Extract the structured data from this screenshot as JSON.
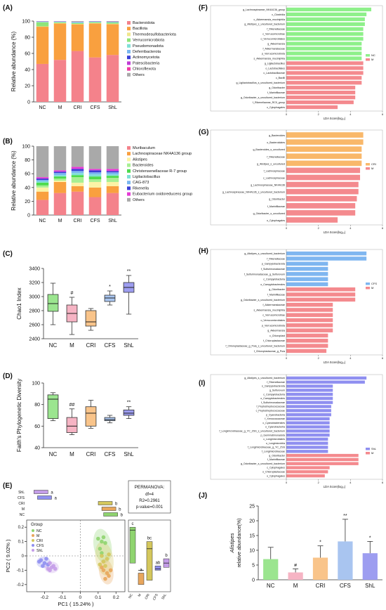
{
  "figure": {
    "panels": [
      "(A)",
      "(B)",
      "(C)",
      "(D)",
      "(E)",
      "(F)",
      "(G)",
      "(H)",
      "(I)",
      "(J)"
    ],
    "groups": [
      "NC",
      "M",
      "CRI",
      "CFS",
      "ShL"
    ]
  },
  "chart_data": [
    {
      "id": "A",
      "type": "bar",
      "stacked": true,
      "categories": [
        "NC",
        "M",
        "CRI",
        "CFS",
        "ShL"
      ],
      "ylabel": "Relative abundance (%)",
      "ylim": [
        0,
        100
      ],
      "yticks": [
        "0",
        "20",
        "40",
        "60",
        "80",
        "100"
      ],
      "legend_placement": "right",
      "series": [
        {
          "name": "Bacteroidota",
          "color": "#f4828b",
          "values": [
            47,
            52,
            63,
            55,
            58
          ]
        },
        {
          "name": "Bacillota",
          "color": "#f9a03f",
          "values": [
            46,
            45,
            33,
            42,
            38
          ]
        },
        {
          "name": "Thermodesulfobacteriota",
          "color": "#f0e68c",
          "values": [
            0.5,
            0.5,
            0.5,
            0.5,
            0.5
          ]
        },
        {
          "name": "Verrucomicrobiota",
          "color": "#8fe57a",
          "values": [
            5,
            1,
            1,
            1,
            1.5
          ]
        },
        {
          "name": "Pseudomonadota",
          "color": "#7fe0d6",
          "values": [
            0.5,
            0.5,
            1,
            0.5,
            0.5
          ]
        },
        {
          "name": "Deferribacterota",
          "color": "#79b7f0",
          "values": [
            0.3,
            0.3,
            0.3,
            0.3,
            0.3
          ]
        },
        {
          "name": "Actinomycetota",
          "color": "#3b3fd6",
          "values": [
            0.2,
            0.2,
            0.2,
            0.2,
            0.2
          ]
        },
        {
          "name": "Patescibacteria",
          "color": "#c13bd6",
          "values": [
            0.2,
            0.2,
            0.2,
            0.2,
            0.2
          ]
        },
        {
          "name": "Chloroflexota",
          "color": "#f03ba6",
          "values": [
            0.1,
            0.1,
            0.1,
            0.1,
            0.1
          ]
        },
        {
          "name": "Others",
          "color": "#a9a9a9",
          "values": [
            0.2,
            0.2,
            0.7,
            0.1,
            0.5
          ]
        }
      ]
    },
    {
      "id": "B",
      "type": "bar",
      "stacked": true,
      "categories": [
        "NC",
        "M",
        "CRI",
        "CFS",
        "ShL"
      ],
      "ylabel": "Relative abundance (%)",
      "ylim": [
        0,
        100
      ],
      "yticks": [
        "0",
        "20",
        "40",
        "60",
        "80",
        "100"
      ],
      "legend_placement": "right",
      "series": [
        {
          "name": "Muribaculum",
          "color": "#f4828b",
          "values": [
            22,
            32,
            34,
            26,
            32
          ]
        },
        {
          "name": "Lachnospiraceae NK4A136 group",
          "color": "#f9a03f",
          "values": [
            12,
            16,
            8,
            14,
            10
          ]
        },
        {
          "name": "Alistipes",
          "color": "#fbf3a6",
          "values": [
            6,
            2,
            5,
            8,
            6
          ]
        },
        {
          "name": "Bacteroides",
          "color": "#a8ef92",
          "values": [
            3,
            3,
            8,
            4,
            6
          ]
        },
        {
          "name": "Christensenellaceae R-7 group",
          "color": "#4ddb4d",
          "values": [
            4,
            3,
            3,
            4,
            3
          ]
        },
        {
          "name": "Ligilactobacillus",
          "color": "#7fe0d6",
          "values": [
            2,
            2,
            3,
            3,
            2
          ]
        },
        {
          "name": "CAG-873",
          "color": "#79b7f0",
          "values": [
            2,
            3,
            3,
            3,
            3
          ]
        },
        {
          "name": "Rikenella",
          "color": "#3b3fd6",
          "values": [
            2,
            2,
            3,
            3,
            2
          ]
        },
        {
          "name": "Eubacterium oxidoreducens group",
          "color": "#e63bd6",
          "values": [
            2,
            2,
            3,
            2,
            3
          ]
        },
        {
          "name": "Others",
          "color": "#a9a9a9",
          "values": [
            45,
            35,
            30,
            33,
            33
          ]
        }
      ]
    },
    {
      "id": "C",
      "type": "box",
      "categories": [
        "NC",
        "M",
        "CRI",
        "CFS",
        "ShL"
      ],
      "ylabel": "Chao1 Index",
      "ylim": [
        2400,
        3400
      ],
      "yticks": [
        "2400",
        "2600",
        "2800",
        "3000",
        "3200",
        "3400"
      ],
      "boxes": [
        {
          "group": "NC",
          "color": "#9be58f",
          "min": 2600,
          "q1": 2790,
          "median": 2900,
          "q3": 3030,
          "max": 3190,
          "sig": ""
        },
        {
          "group": "M",
          "color": "#f6b4c4",
          "min": 2460,
          "q1": 2640,
          "median": 2760,
          "q3": 2880,
          "max": 2990,
          "sig": "#"
        },
        {
          "group": "CRI",
          "color": "#f9c48a",
          "min": 2520,
          "q1": 2580,
          "median": 2640,
          "q3": 2800,
          "max": 2830,
          "sig": ""
        },
        {
          "group": "CFS",
          "color": "#a9c5f0",
          "min": 2880,
          "q1": 2930,
          "median": 2980,
          "q3": 3020,
          "max": 3080,
          "sig": "*"
        },
        {
          "group": "ShL",
          "color": "#9d9df0",
          "min": 2750,
          "q1": 3060,
          "median": 3130,
          "q3": 3200,
          "max": 3300,
          "sig": "**"
        }
      ]
    },
    {
      "id": "D",
      "type": "box",
      "categories": [
        "NC",
        "M",
        "CRI",
        "CFS",
        "ShL"
      ],
      "ylabel": "Faith's Phylogenetic Diversity",
      "ylim": [
        40,
        100
      ],
      "yticks": [
        "40",
        "60",
        "80",
        "100"
      ],
      "boxes": [
        {
          "group": "NC",
          "color": "#9be58f",
          "min": 65,
          "q1": 67,
          "median": 85,
          "q3": 89,
          "max": 91,
          "sig": ""
        },
        {
          "group": "M",
          "color": "#f6b4c4",
          "min": 52,
          "q1": 54,
          "median": 60,
          "q3": 68,
          "max": 76,
          "sig": "##"
        },
        {
          "group": "CRI",
          "color": "#f9c48a",
          "min": 58,
          "q1": 60,
          "median": 72,
          "q3": 78,
          "max": 84,
          "sig": ""
        },
        {
          "group": "CFS",
          "color": "#a9c5f0",
          "min": 63,
          "q1": 65,
          "median": 66,
          "q3": 68,
          "max": 70,
          "sig": ""
        },
        {
          "group": "ShL",
          "color": "#9d9df0",
          "min": 67,
          "q1": 70,
          "median": 72,
          "q3": 75,
          "max": 78,
          "sig": "**"
        }
      ]
    },
    {
      "id": "E",
      "type": "scatter",
      "xlabel": "PC1 ( 15.24% )",
      "ylabel": "PC2 ( 9.02% )",
      "xlim": [
        -0.3,
        0.25
      ],
      "ylim": [
        -0.25,
        0.25
      ],
      "xticks": [
        "-0.2",
        "-0.1",
        "0",
        "0.1",
        "0.2"
      ],
      "yticks": [
        "-0.2",
        "-0.1",
        "0",
        "0.1",
        "0.2"
      ],
      "legend_title": "Group",
      "legend": [
        {
          "name": "NC",
          "color": "#8fd46f"
        },
        {
          "name": "M",
          "color": "#e8a65c"
        },
        {
          "name": "CRI",
          "color": "#d4c75c"
        },
        {
          "name": "CFS",
          "color": "#8f8ff0"
        },
        {
          "name": "ShL",
          "color": "#c49de8"
        }
      ],
      "permanova": {
        "title": "PERMANOVA:",
        "df": "df=4",
        "r2": "R2=0.2961",
        "p": "p-value=0.001"
      },
      "top_groups": [
        "ShL",
        "CFS",
        "CRI",
        "M",
        "NC"
      ],
      "top_letters": [
        "a",
        "a",
        "b",
        "b",
        "b"
      ],
      "side_letters": [
        "c",
        "a",
        "bc",
        "ab",
        "b"
      ],
      "points": {
        "NC": [
          [
            0.12,
            0.1
          ],
          [
            0.1,
            0.12
          ],
          [
            0.11,
            0.05
          ],
          [
            0.14,
            0.09
          ],
          [
            0.13,
            0.13
          ],
          [
            0.12,
            0.02
          ]
        ],
        "M": [
          [
            0.15,
            -0.12
          ],
          [
            0.13,
            -0.1
          ],
          [
            0.16,
            -0.14
          ],
          [
            0.14,
            -0.16
          ],
          [
            0.17,
            -0.1
          ],
          [
            0.12,
            -0.08
          ]
        ],
        "CRI": [
          [
            0.12,
            0.0
          ],
          [
            0.13,
            -0.04
          ],
          [
            0.15,
            -0.02
          ],
          [
            0.11,
            -0.06
          ],
          [
            0.14,
            -0.07
          ],
          [
            0.16,
            0.01
          ]
        ],
        "CFS": [
          [
            -0.22,
            -0.03
          ],
          [
            -0.2,
            -0.05
          ],
          [
            -0.19,
            -0.02
          ],
          [
            -0.21,
            -0.07
          ],
          [
            -0.23,
            -0.04
          ],
          [
            -0.18,
            -0.06
          ]
        ],
        "ShL": [
          [
            -0.17,
            -0.05
          ],
          [
            -0.16,
            -0.08
          ],
          [
            -0.18,
            -0.09
          ],
          [
            -0.15,
            -0.07
          ],
          [
            -0.17,
            -0.1
          ],
          [
            -0.14,
            -0.09
          ]
        ]
      }
    },
    {
      "id": "F",
      "type": "bar",
      "orientation": "horizontal",
      "xlabel": "LDA Score(log₁₀)",
      "xlim": [
        0,
        6
      ],
      "xticks": [
        "0",
        "2",
        "4",
        "6"
      ],
      "legend": [
        {
          "name": "NC",
          "color": "#8ef08a"
        },
        {
          "name": "M",
          "color": "#f48a8e"
        }
      ],
      "labels": [
        "g_Lachnospiraceae_NK4A136_group",
        "c_Clostridia",
        "c_Akkermansia_muciniphila",
        "g_Alistipes_s_uncultured_bacterium",
        "f_Rikenellaceae",
        "c_Verrucomicrobiae",
        "o_Verrucomicrobiales",
        "g_Akkermansia",
        "f_Akkermansiaceae",
        "p_Verrucomicrobiota",
        "s_Akkermansia_muciniphila",
        "g_Ligilactobacillus",
        "o_Lactobacillales",
        "c_Lactobacillaceae",
        "c_Bacilli",
        "g_Ligilactobacillus_s_uncultured_bacterium",
        "g_Odoribacter",
        "f_Marinifilaceae",
        "g_Odoribacter_s_uncultured_bacterium",
        "f_Rikenellaceae_RC9_group",
        "c_Cytophagales"
      ],
      "values": [
        5.3,
        5.0,
        4.9,
        4.9,
        4.8,
        4.8,
        4.8,
        4.7,
        4.7,
        4.7,
        4.7,
        4.8,
        4.8,
        4.8,
        4.7,
        4.7,
        4.3,
        4.3,
        4.3,
        4.2,
        3.2
      ],
      "groups": [
        "NC",
        "NC",
        "NC",
        "NC",
        "NC",
        "NC",
        "NC",
        "NC",
        "NC",
        "NC",
        "NC",
        "M",
        "M",
        "M",
        "M",
        "M",
        "M",
        "M",
        "M",
        "M",
        "M"
      ]
    },
    {
      "id": "G",
      "type": "bar",
      "orientation": "horizontal",
      "xlabel": "LDA Score(log₁₀)",
      "xlim": [
        0,
        6
      ],
      "xticks": [
        "0",
        "2",
        "4",
        "6"
      ],
      "legend": [
        {
          "name": "CRI",
          "color": "#f9b86a"
        },
        {
          "name": "M",
          "color": "#f48a8e"
        }
      ],
      "labels": [
        "g_Bacteroides",
        "o_Bacteroidales",
        "g_Bacteroides_s_uncultured",
        "f_Rikenellaceae",
        "g_Alistipes_s_uncultured",
        "f_Lachnospiraceae",
        "c_Lachnospiraceae",
        "g_Lachnospiraceae_NK4A136",
        "g_Lachnospiraceae_NK4A136_s_uncultured_bacterium",
        "g_Odoribacter",
        "f_Marinifilaceae",
        "g_Odoribacter_s_uncultured",
        "o_Cytophagales"
      ],
      "values": [
        4.8,
        4.8,
        4.7,
        4.7,
        4.7,
        4.6,
        4.6,
        4.5,
        4.5,
        4.4,
        4.3,
        4.3,
        3.2
      ],
      "groups": [
        "CRI",
        "CRI",
        "CRI",
        "CRI",
        "CRI",
        "M",
        "M",
        "M",
        "M",
        "M",
        "M",
        "M",
        "M"
      ]
    },
    {
      "id": "H",
      "type": "bar",
      "orientation": "horizontal",
      "xlabel": "LDA Score(log₁₀)",
      "xlim": [
        0,
        6
      ],
      "xticks": [
        "0",
        "2",
        "4",
        "6"
      ],
      "legend": [
        {
          "name": "CFS",
          "color": "#7fb6f0"
        },
        {
          "name": "M",
          "color": "#f48a8e"
        }
      ],
      "labels": [
        "g_Alistipes_s_uncultured_bacterium",
        "f_Rikenellaceae",
        "p_Campylobacterota",
        "f_Sulfurimonadaceae",
        "f_Sulfurimonadaceae_g_Sulfurovum",
        "c_Campylobacteria",
        "o_Campylobacterales",
        "g_Odoribacter",
        "f_Marinifilaceae",
        "g_Odoribacter_s_uncultured_bacterium",
        "f_Akkermansiaceae",
        "s_Akkermansia_muciniphila",
        "c_Verrucomicrobiae",
        "o_Verrucomicrobiales",
        "p_Verrucomicrobiota",
        "g_Akkermansia",
        "c_Chloroplast",
        "f_Chloroplastaceae",
        "f_Chloroplastaceae_g_Puia_s_uncultured_bacterium",
        "f_Chloroplastaceae_g_Puia"
      ],
      "values": [
        5.0,
        5.0,
        2.6,
        2.6,
        2.6,
        2.6,
        2.6,
        4.3,
        4.3,
        4.3,
        2.9,
        2.9,
        2.9,
        2.9,
        2.9,
        2.9,
        2.6,
        2.6,
        2.6,
        2.5
      ],
      "groups": [
        "CFS",
        "CFS",
        "CFS",
        "CFS",
        "CFS",
        "CFS",
        "CFS",
        "M",
        "M",
        "M",
        "M",
        "M",
        "M",
        "M",
        "M",
        "M",
        "M",
        "M",
        "M",
        "M"
      ]
    },
    {
      "id": "I",
      "type": "bar",
      "orientation": "horizontal",
      "xlabel": "LDA Score(log₁₀)",
      "xlim": [
        0,
        6
      ],
      "xticks": [
        "0",
        "2",
        "4",
        "6"
      ],
      "legend": [
        {
          "name": "ShL",
          "color": "#8f8ff0"
        },
        {
          "name": "M",
          "color": "#f48a8e"
        }
      ],
      "labels": [
        "g_Alistipes_s_uncultured_bacterium",
        "f_Rikenellaceae",
        "s_Campylobacterota",
        "g_Sulfurovum",
        "c_Campylobacteria",
        "o_Campylobacterales",
        "f_Sulfurimonadaceae",
        "f_Peptostreptococcaceae",
        "c_Peptostreptococcaceae",
        "p_Cyanobacteria",
        "f_Xenococcaceae",
        "c_Cyanobacteriales",
        "o_Cyanobacteriia",
        "f_Longimicrobiaceae_g_YC_ZSS_s_uncultured_bacterium",
        "p_Gemmatimonadota",
        "c_Longimicrobiales",
        "o_Longimicrobiia",
        "f_Longimicrobiaceae_g_YC_ZSS",
        "f_Longimicrobiaceae",
        "g_Odoribacter",
        "f_Marinifilaceae",
        "g_Odoribacter_s_uncultured_bacterium",
        "c_Cytophagales",
        "o_Chloroplastaceae",
        "o_Cytophagales"
      ],
      "values": [
        5.0,
        4.9,
        2.9,
        2.9,
        2.9,
        2.9,
        2.9,
        2.8,
        2.8,
        2.8,
        2.7,
        2.7,
        2.7,
        2.7,
        2.7,
        2.6,
        2.6,
        2.6,
        2.6,
        4.5,
        4.5,
        4.5,
        2.7,
        2.6,
        2.4
      ],
      "groups": [
        "ShL",
        "ShL",
        "ShL",
        "ShL",
        "ShL",
        "ShL",
        "ShL",
        "ShL",
        "ShL",
        "ShL",
        "ShL",
        "ShL",
        "ShL",
        "ShL",
        "ShL",
        "ShL",
        "ShL",
        "ShL",
        "ShL",
        "M",
        "M",
        "M",
        "M",
        "M",
        "M"
      ]
    },
    {
      "id": "J",
      "type": "bar",
      "categories": [
        "NC",
        "M",
        "CRI",
        "CFS",
        "ShL"
      ],
      "ylabel": "Alistipes relative abundance(%)",
      "ylim": [
        0,
        25
      ],
      "yticks": [
        "0",
        "5",
        "10",
        "15",
        "20",
        "25"
      ],
      "bars": [
        {
          "group": "NC",
          "color": "#9be58f",
          "value": 7,
          "err": 4,
          "sig": ""
        },
        {
          "group": "M",
          "color": "#f6b4c4",
          "value": 2.5,
          "err": 1.2,
          "sig": "#"
        },
        {
          "group": "CRI",
          "color": "#f9c48a",
          "value": 7.5,
          "err": 4,
          "sig": "*"
        },
        {
          "group": "CFS",
          "color": "#a9c5f0",
          "value": 13,
          "err": 7.5,
          "sig": "**"
        },
        {
          "group": "ShL",
          "color": "#9d9df0",
          "value": 9,
          "err": 4,
          "sig": "*"
        }
      ]
    }
  ]
}
